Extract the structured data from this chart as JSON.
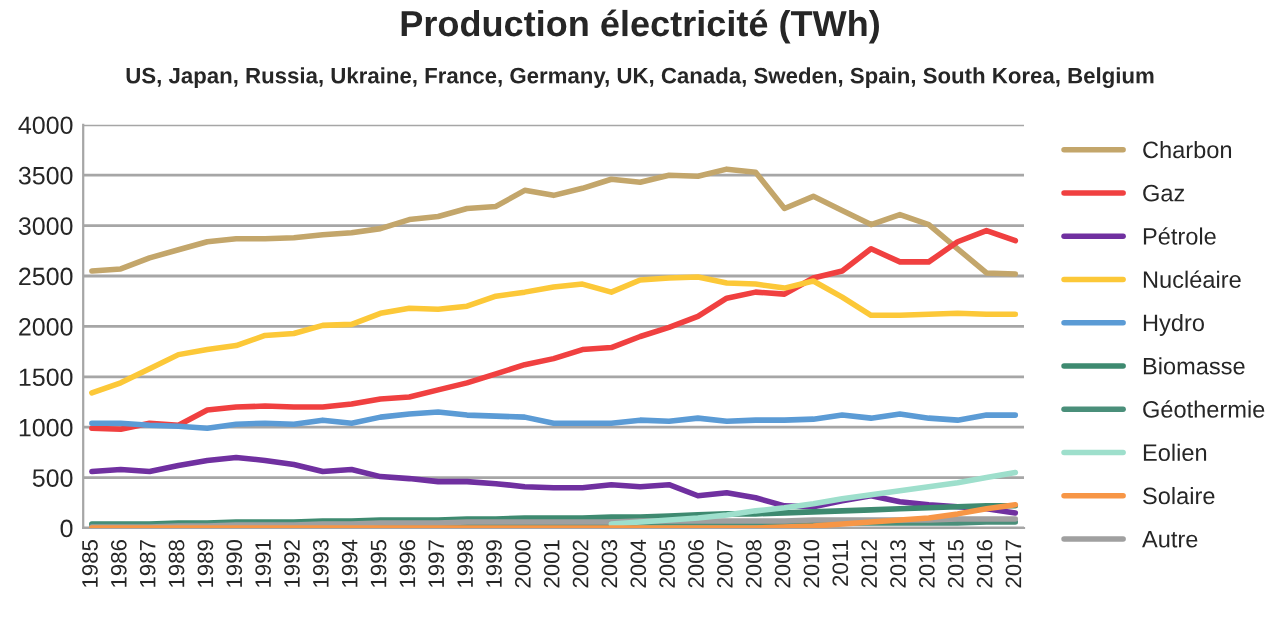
{
  "chart_data": {
    "type": "line",
    "title": "Production électricité (TWh)",
    "subtitle": "US, Japan, Russia, Ukraine, France, Germany, UK, Canada, Sweden, Spain, South Korea, Belgium",
    "categories": [
      "1985",
      "1986",
      "1987",
      "1988",
      "1989",
      "1990",
      "1991",
      "1992",
      "1993",
      "1994",
      "1995",
      "1996",
      "1997",
      "1998",
      "1999",
      "2000",
      "2001",
      "2002",
      "2003",
      "2004",
      "2005",
      "2006",
      "2007",
      "2008",
      "2009",
      "2010",
      "2011",
      "2012",
      "2013",
      "2014",
      "2015",
      "2016",
      "2017"
    ],
    "ylim": [
      0,
      4000
    ],
    "yticks": [
      0,
      500,
      1000,
      1500,
      2000,
      2500,
      3000,
      3500,
      4000
    ],
    "grid": "y",
    "legend": "right",
    "marker": "none",
    "line_style": "solid",
    "series": [
      {
        "name": "Charbon",
        "color": "#c3a66b",
        "values": [
          2550,
          2570,
          2680,
          2760,
          2840,
          2870,
          2870,
          2880,
          2910,
          2930,
          2970,
          3060,
          3090,
          3170,
          3190,
          3350,
          3300,
          3370,
          3460,
          3430,
          3500,
          3490,
          3560,
          3530,
          3170,
          3290,
          3150,
          3010,
          3110,
          3010,
          2770,
          2530,
          2520
        ]
      },
      {
        "name": "Gaz",
        "color": "#f04040",
        "values": [
          990,
          980,
          1040,
          1020,
          1170,
          1200,
          1210,
          1200,
          1200,
          1230,
          1280,
          1300,
          1370,
          1440,
          1530,
          1620,
          1680,
          1770,
          1790,
          1900,
          1990,
          2100,
          2280,
          2340,
          2320,
          2480,
          2550,
          2770,
          2640,
          2640,
          2840,
          2950,
          2850
        ]
      },
      {
        "name": "Pétrole",
        "color": "#7030a0",
        "values": [
          560,
          580,
          560,
          620,
          670,
          700,
          670,
          630,
          560,
          580,
          510,
          490,
          460,
          460,
          440,
          410,
          400,
          400,
          430,
          410,
          430,
          320,
          350,
          300,
          220,
          210,
          270,
          320,
          260,
          230,
          210,
          190,
          150
        ]
      },
      {
        "name": "Nucléaire",
        "color": "#fcc838",
        "values": [
          1340,
          1440,
          1580,
          1720,
          1770,
          1810,
          1910,
          1930,
          2010,
          2020,
          2130,
          2180,
          2170,
          2200,
          2300,
          2340,
          2390,
          2420,
          2340,
          2460,
          2480,
          2490,
          2430,
          2420,
          2380,
          2450,
          2290,
          2110,
          2110,
          2120,
          2130,
          2120,
          2120
        ]
      },
      {
        "name": "Hydro",
        "color": "#5b9bd5",
        "values": [
          1040,
          1040,
          1020,
          1010,
          990,
          1030,
          1040,
          1030,
          1070,
          1040,
          1100,
          1130,
          1150,
          1120,
          1110,
          1100,
          1040,
          1040,
          1040,
          1070,
          1060,
          1090,
          1060,
          1070,
          1070,
          1080,
          1120,
          1090,
          1130,
          1090,
          1070,
          1120,
          1120
        ]
      },
      {
        "name": "Biomasse",
        "color": "#3e8a70",
        "values": [
          40,
          40,
          40,
          50,
          50,
          60,
          60,
          60,
          70,
          70,
          80,
          80,
          80,
          90,
          90,
          100,
          100,
          100,
          110,
          110,
          120,
          130,
          140,
          140,
          150,
          160,
          170,
          180,
          190,
          200,
          210,
          220,
          220
        ]
      },
      {
        "name": "Géothermie",
        "color": "#4a8f7a",
        "values": [
          30,
          30,
          30,
          30,
          40,
          40,
          40,
          40,
          40,
          40,
          40,
          40,
          40,
          40,
          40,
          40,
          40,
          40,
          40,
          50,
          50,
          50,
          50,
          50,
          50,
          50,
          50,
          50,
          50,
          50,
          50,
          60,
          60
        ]
      },
      {
        "name": "Eolien",
        "color": "#9edfcc",
        "values": [
          null,
          null,
          null,
          null,
          null,
          null,
          null,
          null,
          null,
          null,
          null,
          null,
          null,
          null,
          null,
          null,
          null,
          null,
          40,
          60,
          80,
          100,
          130,
          170,
          200,
          240,
          290,
          330,
          370,
          410,
          450,
          500,
          550
        ]
      },
      {
        "name": "Solaire",
        "color": "#f79646",
        "values": [
          0,
          0,
          0,
          0,
          0,
          0,
          0,
          0,
          0,
          0,
          0,
          0,
          0,
          0,
          0,
          0,
          0,
          0,
          0,
          0,
          0,
          0,
          0,
          0,
          10,
          20,
          40,
          60,
          80,
          100,
          140,
          190,
          230
        ]
      },
      {
        "name": "Autre",
        "color": "#a0a0a0",
        "values": [
          10,
          10,
          10,
          20,
          20,
          30,
          30,
          30,
          40,
          40,
          50,
          50,
          50,
          60,
          60,
          60,
          60,
          60,
          60,
          70,
          70,
          70,
          70,
          70,
          70,
          80,
          80,
          80,
          80,
          80,
          90,
          90,
          90
        ]
      }
    ]
  }
}
